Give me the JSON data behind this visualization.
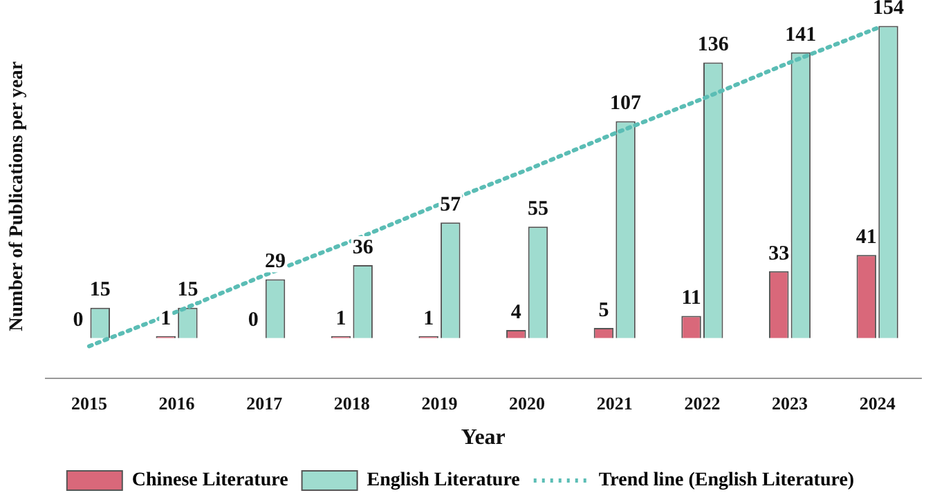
{
  "chart_data": {
    "type": "bar",
    "xlabel": "Year",
    "ylabel": "Number of Publications per year",
    "categories": [
      "2015",
      "2016",
      "2017",
      "2018",
      "2019",
      "2020",
      "2021",
      "2022",
      "2023",
      "2024"
    ],
    "grid": false,
    "legend": "bottom",
    "tick_labels": "x",
    "series": [
      {
        "name": "Chinese Literature",
        "color": "#d9687a",
        "values": [
          0,
          1,
          0,
          1,
          1,
          4,
          5,
          11,
          33,
          41
        ],
        "value_labels": [
          "0",
          "1",
          "0",
          "1",
          "1",
          "4",
          "5",
          "11",
          "33",
          "41"
        ]
      },
      {
        "name": "English Literature",
        "color": "#9fdccf",
        "values": [
          15,
          15,
          29,
          36,
          57,
          55,
          107,
          136,
          141,
          154
        ],
        "value_labels": [
          "15",
          "15",
          "29",
          "36",
          "57",
          "55",
          "107",
          "136",
          "141",
          "154"
        ]
      },
      {
        "name": "Trend line (English Literature)",
        "type": "line",
        "color": "#5bbdb5",
        "line_style": "dotted",
        "marker": "none",
        "values": [
          -4,
          13,
          31,
          48,
          66,
          83,
          101,
          118,
          136,
          153
        ]
      }
    ]
  }
}
